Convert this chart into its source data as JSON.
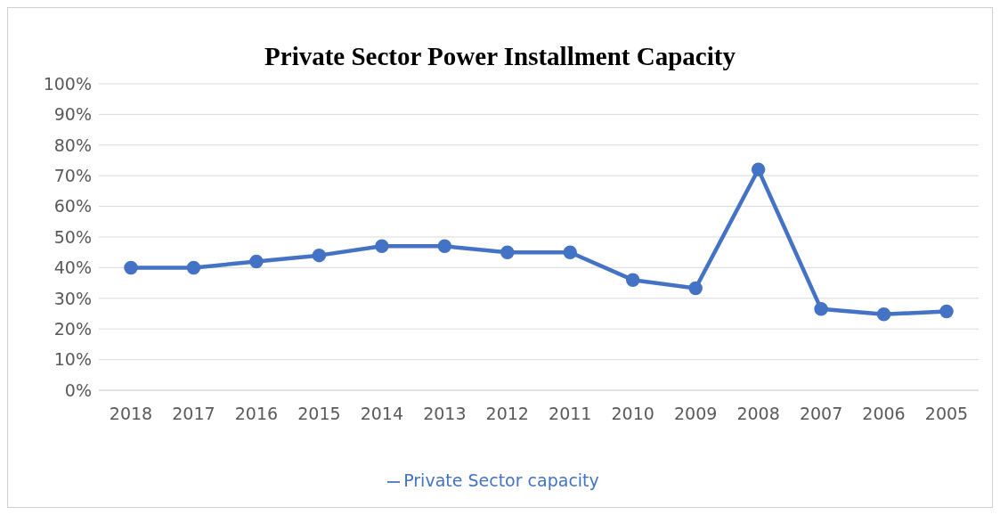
{
  "chart_data": {
    "type": "line",
    "title": "Private Sector Power Installment Capacity",
    "categories": [
      "2018",
      "2017",
      "2016",
      "2015",
      "2014",
      "2013",
      "2012",
      "2011",
      "2010",
      "2009",
      "2008",
      "2007",
      "2006",
      "2005"
    ],
    "series": [
      {
        "name": "Private Sector capacity",
        "color": "#4472c4",
        "values": [
          40,
          40,
          42,
          44,
          47,
          47,
          45,
          45,
          36,
          33.3,
          72,
          26.5,
          24.8,
          25.7
        ]
      }
    ],
    "ylim": [
      0,
      100
    ],
    "yticks": [
      {
        "value": 0,
        "label": "0%"
      },
      {
        "value": 10,
        "label": "10%"
      },
      {
        "value": 20,
        "label": "20%"
      },
      {
        "value": 30,
        "label": "30%"
      },
      {
        "value": 40,
        "label": "40%"
      },
      {
        "value": 50,
        "label": "50%"
      },
      {
        "value": 60,
        "label": "60%"
      },
      {
        "value": 70,
        "label": "70%"
      },
      {
        "value": 80,
        "label": "80%"
      },
      {
        "value": 90,
        "label": "90%"
      },
      {
        "value": 100,
        "label": "100%"
      }
    ],
    "grid": "y",
    "legend": "bottom",
    "marker": "circle",
    "line_style": "solid"
  }
}
